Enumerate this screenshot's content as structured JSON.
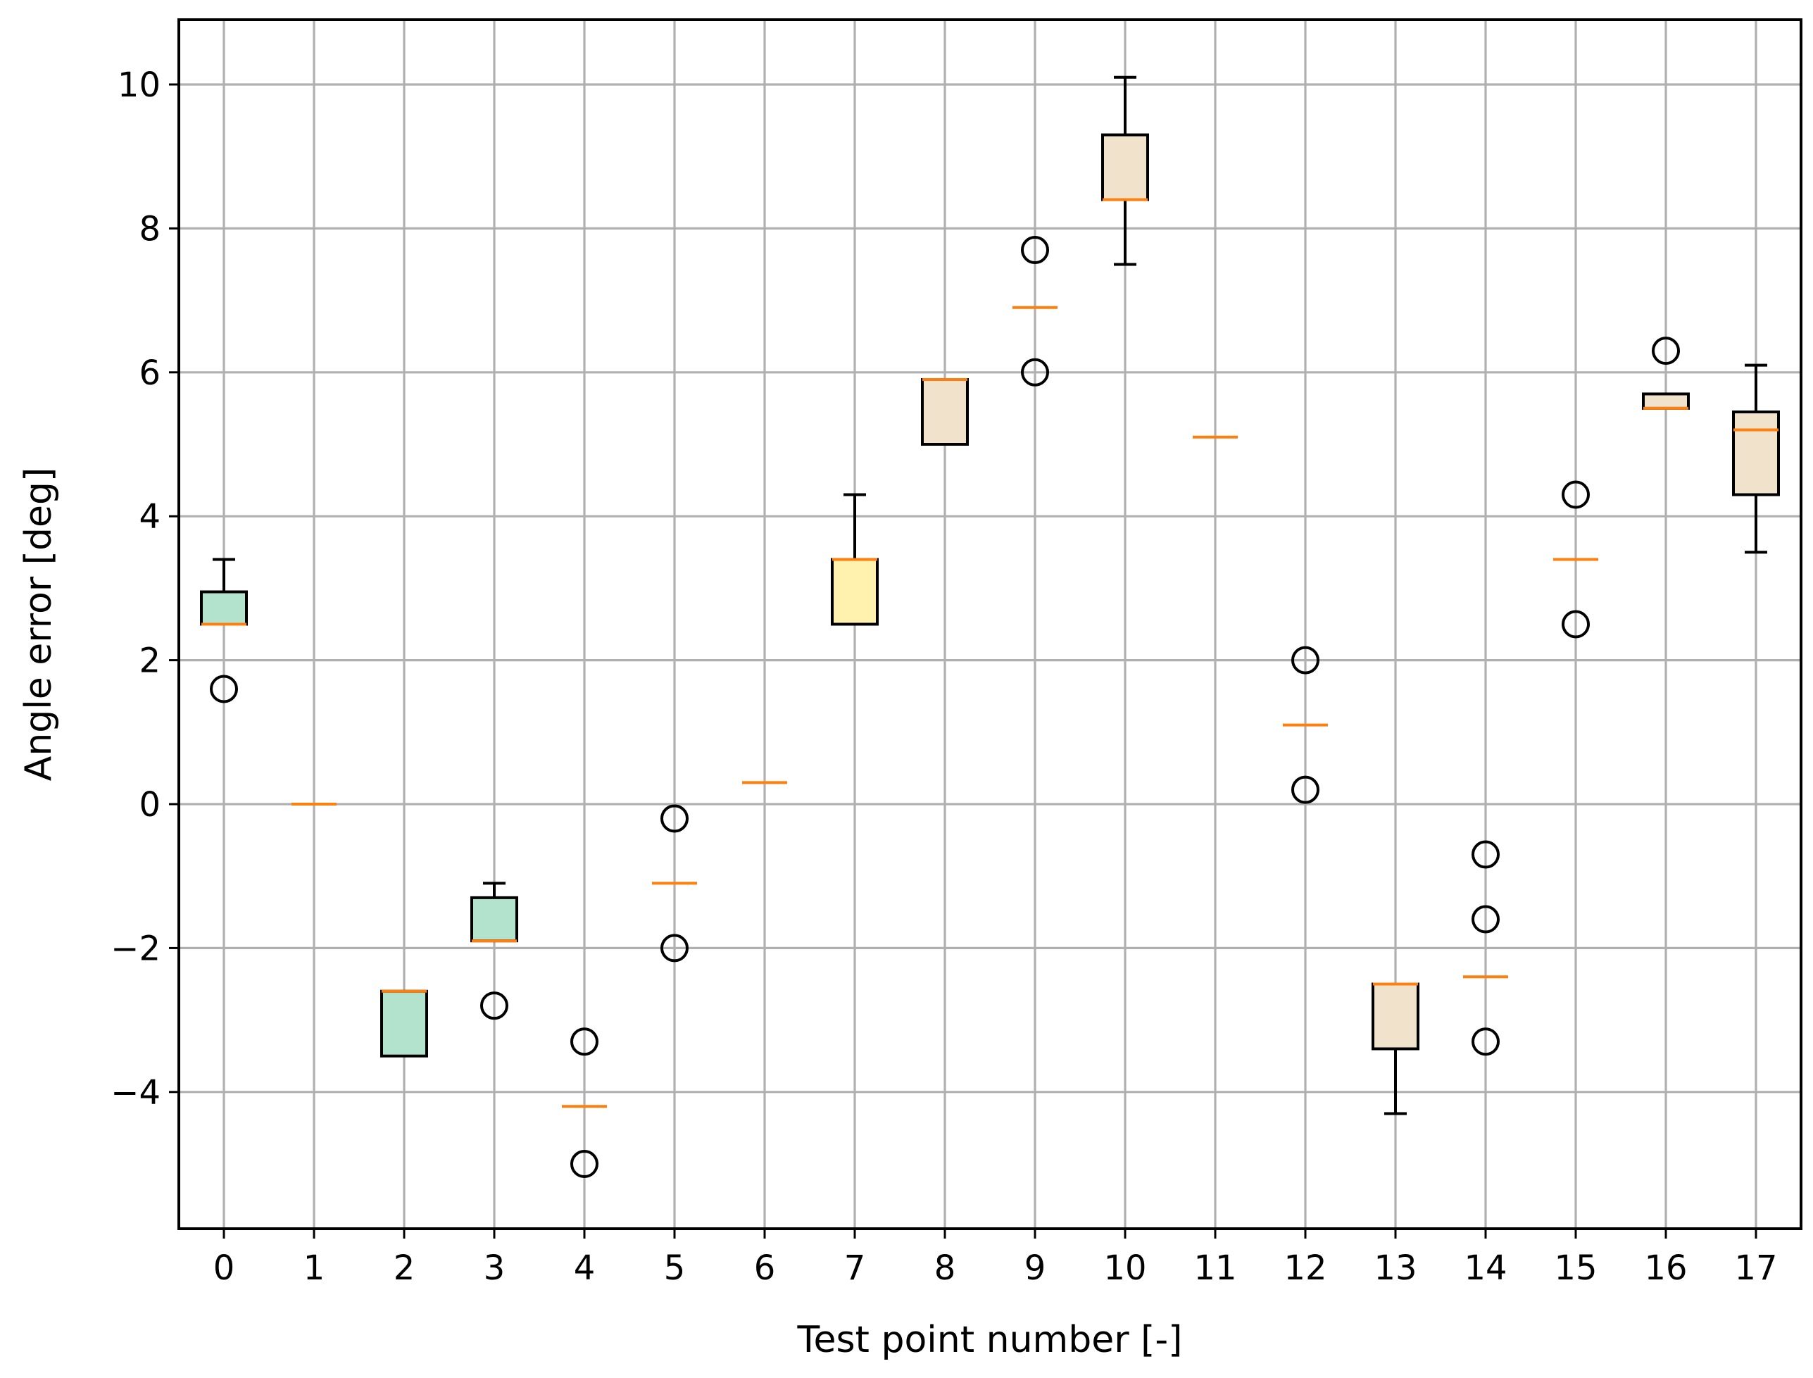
{
  "chart_data": {
    "type": "box",
    "title": "",
    "xlabel": "Test point number [-]",
    "ylabel": "Angle error [deg]",
    "ylim": [
      -5.9,
      10.9
    ],
    "xlim": [
      -0.5,
      17.5
    ],
    "yticks": [
      -4,
      -2,
      0,
      2,
      4,
      6,
      8,
      10
    ],
    "ytick_labels": [
      "−4",
      "−2",
      "0",
      "2",
      "4",
      "6",
      "8",
      "10"
    ],
    "grid": true,
    "colors": {
      "teal": "#b3e2cd",
      "yellow": "#fff2ae",
      "beige": "#f1e2cc",
      "median": "#ff7f0e",
      "outline": "#000000",
      "grid": "#b0b0b0"
    },
    "boxes": [
      {
        "x": 0,
        "label": "0",
        "q1": 2.5,
        "median": 2.5,
        "q3": 2.95,
        "whislo": 2.5,
        "whishi": 3.4,
        "fliers": [
          1.6
        ],
        "color": "teal"
      },
      {
        "x": 1,
        "label": "1",
        "q1": 0.0,
        "median": 0.0,
        "q3": 0.0,
        "whislo": 0.0,
        "whishi": 0.0,
        "fliers": [],
        "color": "teal"
      },
      {
        "x": 2,
        "label": "2",
        "q1": -3.5,
        "median": -2.6,
        "q3": -2.6,
        "whislo": -3.5,
        "whishi": -2.6,
        "fliers": [],
        "color": "teal"
      },
      {
        "x": 3,
        "label": "3",
        "q1": -1.9,
        "median": -1.9,
        "q3": -1.3,
        "whislo": -1.9,
        "whishi": -1.1,
        "fliers": [
          -2.8
        ],
        "color": "teal"
      },
      {
        "x": 4,
        "label": "4",
        "q1": -4.2,
        "median": -4.2,
        "q3": -4.2,
        "whislo": -4.2,
        "whishi": -4.2,
        "fliers": [
          -3.3,
          -5.0
        ],
        "color": "teal"
      },
      {
        "x": 5,
        "label": "5",
        "q1": -1.1,
        "median": -1.1,
        "q3": -1.1,
        "whislo": -1.1,
        "whishi": -1.1,
        "fliers": [
          -0.2,
          -2.0
        ],
        "color": "teal"
      },
      {
        "x": 6,
        "label": "6",
        "q1": 0.3,
        "median": 0.3,
        "q3": 0.3,
        "whislo": 0.3,
        "whishi": 0.3,
        "fliers": [],
        "color": "yellow"
      },
      {
        "x": 7,
        "label": "7",
        "q1": 2.5,
        "median": 3.4,
        "q3": 3.4,
        "whislo": 2.5,
        "whishi": 4.3,
        "fliers": [],
        "color": "yellow"
      },
      {
        "x": 8,
        "label": "8",
        "q1": 5.0,
        "median": 5.9,
        "q3": 5.9,
        "whislo": 5.0,
        "whishi": 5.9,
        "fliers": [],
        "color": "beige"
      },
      {
        "x": 9,
        "label": "9",
        "q1": 6.9,
        "median": 6.9,
        "q3": 6.9,
        "whislo": 6.9,
        "whishi": 6.9,
        "fliers": [
          7.7,
          6.0
        ],
        "color": "beige"
      },
      {
        "x": 10,
        "label": "10",
        "q1": 8.4,
        "median": 8.4,
        "q3": 9.3,
        "whislo": 7.5,
        "whishi": 10.1,
        "fliers": [],
        "color": "beige"
      },
      {
        "x": 11,
        "label": "11",
        "q1": 5.1,
        "median": 5.1,
        "q3": 5.1,
        "whislo": 5.1,
        "whishi": 5.1,
        "fliers": [],
        "color": "beige"
      },
      {
        "x": 12,
        "label": "12",
        "q1": 1.1,
        "median": 1.1,
        "q3": 1.1,
        "whislo": 1.1,
        "whishi": 1.1,
        "fliers": [
          2.0,
          0.2
        ],
        "color": "beige"
      },
      {
        "x": 13,
        "label": "13",
        "q1": -3.4,
        "median": -2.5,
        "q3": -2.5,
        "whislo": -4.3,
        "whishi": -2.5,
        "fliers": [],
        "color": "beige"
      },
      {
        "x": 14,
        "label": "14",
        "q1": -2.4,
        "median": -2.4,
        "q3": -2.4,
        "whislo": -2.4,
        "whishi": -2.4,
        "fliers": [
          -0.7,
          -1.6,
          -3.3
        ],
        "color": "beige"
      },
      {
        "x": 15,
        "label": "15",
        "q1": 3.4,
        "median": 3.4,
        "q3": 3.4,
        "whislo": 3.4,
        "whishi": 3.4,
        "fliers": [
          4.3,
          2.5
        ],
        "color": "beige"
      },
      {
        "x": 16,
        "label": "16",
        "q1": 5.5,
        "median": 5.5,
        "q3": 5.7,
        "whislo": 5.5,
        "whishi": 5.7,
        "fliers": [
          6.3
        ],
        "color": "beige"
      },
      {
        "x": 17,
        "label": "17",
        "q1": 4.3,
        "median": 5.2,
        "q3": 5.45,
        "whislo": 3.5,
        "whishi": 6.1,
        "fliers": [],
        "color": "beige"
      }
    ]
  }
}
